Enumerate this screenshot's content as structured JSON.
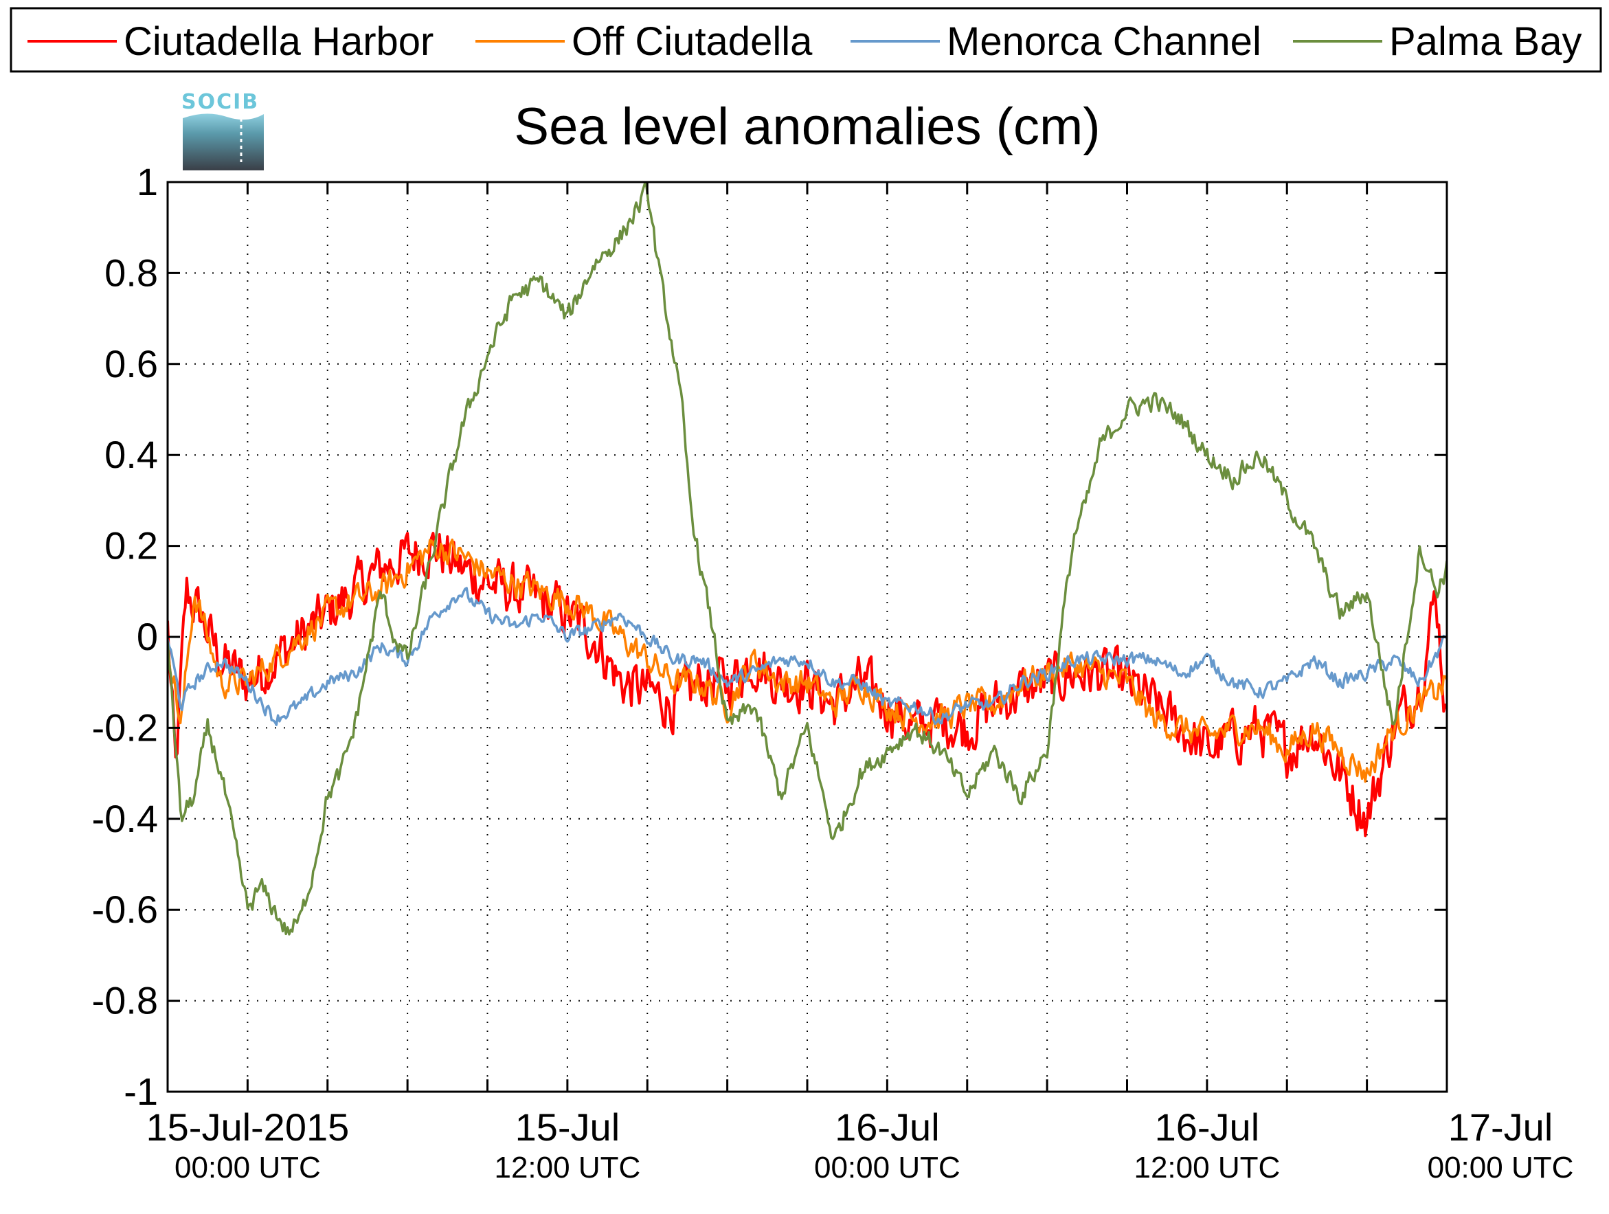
{
  "chart_data": {
    "type": "line",
    "title": "Sea level anomalies (cm)",
    "xlabel": "",
    "ylabel": "",
    "ylim": [
      -1,
      1
    ],
    "yticks": [
      -1,
      -0.8,
      -0.6,
      -0.4,
      -0.2,
      0,
      0.2,
      0.4,
      0.6,
      0.8,
      1
    ],
    "ytick_labels": [
      "-1",
      "-0.8",
      "-0.6",
      "-0.4",
      "-0.2",
      "0",
      "0.2",
      "0.4",
      "0.6",
      "0.8",
      "1"
    ],
    "xlim_hours": [
      -3,
      45
    ],
    "x_unit": "hours from 15-Jul-2015 00:00 UTC",
    "xticks_minor_hours": [
      -3,
      0,
      3,
      6,
      9,
      12,
      15,
      18,
      21,
      24,
      27,
      30,
      33,
      36,
      39,
      42,
      45
    ],
    "xtick_labels": [
      {
        "x": 0,
        "line1": "15-Jul-2015",
        "line2": "00:00 UTC"
      },
      {
        "x": 12,
        "line1": "15-Jul",
        "line2": "12:00 UTC"
      },
      {
        "x": 24,
        "line1": "16-Jul",
        "line2": "00:00 UTC"
      },
      {
        "x": 36,
        "line1": "16-Jul",
        "line2": "12:00 UTC"
      },
      {
        "x": 48,
        "line1": "17-Jul",
        "line2": "00:00 UTC"
      }
    ],
    "grid": true,
    "legend_position": "top",
    "series": [
      {
        "name": "Ciutadella Harbor",
        "color": "#ff0000",
        "noise": 0.09,
        "x": [
          -3,
          -2.7,
          -2.3,
          -1.8,
          -1,
          0,
          1,
          2,
          3,
          4,
          5,
          6,
          7,
          8,
          9,
          10,
          11,
          12,
          13,
          14,
          15,
          16,
          17,
          18,
          19,
          20,
          21,
          22,
          23,
          24,
          25,
          26,
          27,
          28,
          29,
          30,
          31,
          32,
          33,
          34,
          35,
          36,
          37,
          38,
          39,
          40,
          41,
          42,
          43,
          44,
          44.6,
          45
        ],
        "y": [
          0.02,
          -0.3,
          0.1,
          0.05,
          -0.05,
          -0.1,
          -0.05,
          0.0,
          0.05,
          0.1,
          0.15,
          0.18,
          0.2,
          0.15,
          0.12,
          0.1,
          0.08,
          0.05,
          0.0,
          -0.1,
          -0.12,
          -0.15,
          -0.1,
          -0.1,
          -0.05,
          -0.1,
          -0.1,
          -0.15,
          -0.1,
          -0.15,
          -0.2,
          -0.18,
          -0.2,
          -0.15,
          -0.12,
          -0.1,
          -0.08,
          -0.08,
          -0.1,
          -0.15,
          -0.2,
          -0.25,
          -0.22,
          -0.2,
          -0.25,
          -0.2,
          -0.3,
          -0.4,
          -0.2,
          -0.1,
          0.1,
          -0.2
        ]
      },
      {
        "name": "Off Ciutadella",
        "color": "#ff8000",
        "noise": 0.05,
        "x": [
          -3,
          -2.5,
          -2,
          -1.5,
          -1,
          0,
          1,
          2,
          3,
          4,
          5,
          6,
          7,
          8,
          9,
          10,
          11,
          12,
          13,
          14,
          15,
          16,
          17,
          18,
          19,
          20,
          21,
          22,
          23,
          24,
          25,
          26,
          27,
          28,
          29,
          30,
          31,
          32,
          33,
          34,
          35,
          36,
          37,
          38,
          39,
          40,
          41,
          42,
          43,
          44,
          45
        ],
        "y": [
          0.0,
          -0.2,
          0.1,
          0.0,
          -0.1,
          -0.1,
          -0.05,
          0.0,
          0.05,
          0.08,
          0.1,
          0.15,
          0.2,
          0.18,
          0.14,
          0.12,
          0.1,
          0.08,
          0.05,
          0.0,
          -0.05,
          -0.1,
          -0.1,
          -0.15,
          -0.05,
          -0.1,
          -0.1,
          -0.15,
          -0.1,
          -0.15,
          -0.18,
          -0.18,
          -0.15,
          -0.15,
          -0.1,
          -0.08,
          -0.06,
          -0.08,
          -0.1,
          -0.18,
          -0.2,
          -0.22,
          -0.2,
          -0.2,
          -0.25,
          -0.2,
          -0.25,
          -0.3,
          -0.2,
          -0.15,
          -0.1
        ]
      },
      {
        "name": "Menorca Channel",
        "color": "#6699cc",
        "noise": 0.025,
        "x": [
          -3,
          -2.5,
          -2,
          -1,
          0,
          1,
          2,
          3,
          4,
          5,
          6,
          7,
          8,
          9,
          10,
          11,
          12,
          13,
          14,
          15,
          16,
          17,
          18,
          19,
          20,
          21,
          22,
          23,
          24,
          25,
          26,
          27,
          28,
          29,
          30,
          31,
          32,
          33,
          34,
          35,
          36,
          37,
          38,
          39,
          40,
          41,
          42,
          43,
          44,
          45
        ],
        "y": [
          0.0,
          -0.15,
          -0.1,
          -0.05,
          -0.1,
          -0.18,
          -0.15,
          -0.1,
          -0.08,
          -0.02,
          -0.05,
          0.05,
          0.1,
          0.05,
          0.02,
          0.05,
          0.0,
          0.02,
          0.05,
          0.0,
          -0.05,
          -0.05,
          -0.1,
          -0.08,
          -0.05,
          -0.05,
          -0.1,
          -0.1,
          -0.15,
          -0.15,
          -0.18,
          -0.15,
          -0.15,
          -0.1,
          -0.08,
          -0.05,
          -0.05,
          -0.05,
          -0.05,
          -0.08,
          -0.05,
          -0.1,
          -0.12,
          -0.1,
          -0.05,
          -0.1,
          -0.08,
          -0.05,
          -0.1,
          0.0
        ]
      },
      {
        "name": "Palma Bay",
        "color": "#6b8e3e",
        "noise": 0.035,
        "x": [
          -3,
          -2.5,
          -2,
          -1.5,
          -1,
          -0.5,
          0,
          0.5,
          1,
          1.5,
          2,
          2.5,
          3,
          3.5,
          4,
          4.5,
          5,
          5.5,
          6,
          7,
          8,
          9,
          10,
          11,
          12,
          13,
          14,
          15,
          15.5,
          16,
          16.3,
          16.6,
          17,
          17.5,
          18,
          19,
          20,
          21,
          22,
          23,
          24,
          25,
          26,
          27,
          28,
          29,
          30,
          30.5,
          31,
          31.5,
          32,
          33,
          34,
          35,
          36,
          37,
          38,
          39,
          40,
          41,
          42,
          43,
          44,
          44.6,
          45
        ],
        "y": [
          0.0,
          -0.4,
          -0.35,
          -0.2,
          -0.3,
          -0.45,
          -0.6,
          -0.55,
          -0.6,
          -0.65,
          -0.62,
          -0.5,
          -0.35,
          -0.3,
          -0.2,
          -0.05,
          0.1,
          0.0,
          -0.05,
          0.2,
          0.45,
          0.62,
          0.75,
          0.78,
          0.7,
          0.82,
          0.88,
          0.98,
          0.78,
          0.62,
          0.5,
          0.3,
          0.15,
          0.0,
          -0.2,
          -0.15,
          -0.35,
          -0.2,
          -0.45,
          -0.3,
          -0.25,
          -0.2,
          -0.25,
          -0.35,
          -0.25,
          -0.35,
          -0.25,
          0.0,
          0.22,
          0.3,
          0.42,
          0.5,
          0.52,
          0.48,
          0.4,
          0.35,
          0.4,
          0.3,
          0.2,
          0.05,
          0.1,
          -0.2,
          0.2,
          0.1,
          0.15
        ]
      }
    ]
  }
}
